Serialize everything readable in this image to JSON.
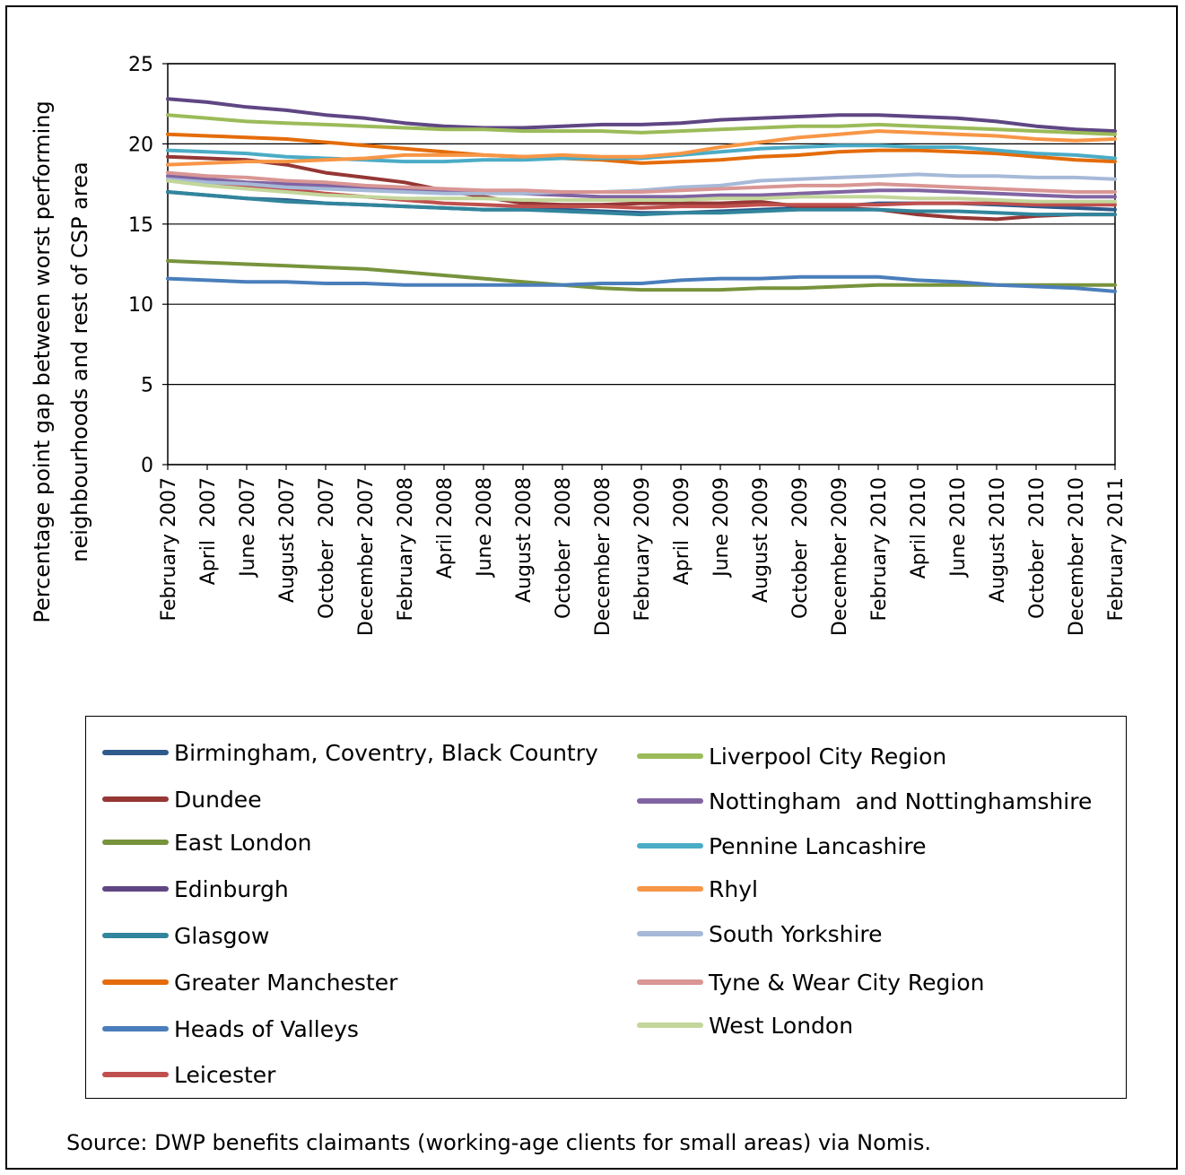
{
  "chart_data": {
    "type": "line",
    "title": "",
    "ylabel": "Percentage point gap between worst performing neighbourhoods and rest of CSP area",
    "xlabel": "",
    "ylim": [
      0,
      25
    ],
    "yticks": [
      0,
      5,
      10,
      15,
      20,
      25
    ],
    "grid": "horizontal",
    "legend_position": "bottom",
    "categories": [
      "February 2007",
      "April  2007",
      "June 2007",
      "August 2007",
      "October  2007",
      "December 2007",
      "February 2008",
      "April 2008",
      "June 2008",
      "August 2008",
      "October  2008",
      "December 2008",
      "February 2009",
      "April  2009",
      "June 2009",
      "August 2009",
      "October  2009",
      "December 2009",
      "February 2010",
      "April 2010",
      "June 2010",
      "August 2010",
      "October  2010",
      "December 2010",
      "February 2011"
    ],
    "series": [
      {
        "name": "Birmingham, Coventry, Black Country",
        "color": "#2E5A8C",
        "values": [
          17.0,
          16.8,
          16.6,
          16.5,
          16.3,
          16.2,
          16.1,
          16.0,
          15.9,
          15.9,
          15.9,
          15.8,
          15.7,
          15.7,
          15.8,
          15.9,
          16.0,
          16.1,
          16.3,
          16.3,
          16.3,
          16.2,
          16.1,
          16.0,
          15.9
        ]
      },
      {
        "name": "Dundee",
        "color": "#953735",
        "values": [
          19.2,
          19.1,
          19.0,
          18.7,
          18.2,
          17.9,
          17.6,
          17.1,
          16.7,
          16.3,
          16.2,
          16.2,
          16.3,
          16.3,
          16.3,
          16.4,
          16.1,
          16.0,
          15.9,
          15.6,
          15.4,
          15.3,
          15.5,
          15.6,
          15.6
        ]
      },
      {
        "name": "East London",
        "color": "#77933C",
        "values": [
          12.7,
          12.6,
          12.5,
          12.4,
          12.3,
          12.2,
          12.0,
          11.8,
          11.6,
          11.4,
          11.2,
          11.0,
          10.9,
          10.9,
          10.9,
          11.0,
          11.0,
          11.1,
          11.2,
          11.2,
          11.2,
          11.2,
          11.2,
          11.2,
          11.2
        ]
      },
      {
        "name": "Edinburgh",
        "color": "#5F4683",
        "values": [
          22.8,
          22.6,
          22.3,
          22.1,
          21.8,
          21.6,
          21.3,
          21.1,
          21.0,
          21.0,
          21.1,
          21.2,
          21.2,
          21.3,
          21.5,
          21.6,
          21.7,
          21.8,
          21.8,
          21.7,
          21.6,
          21.4,
          21.1,
          20.9,
          20.8
        ]
      },
      {
        "name": "Glasgow",
        "color": "#31859C",
        "values": [
          17.0,
          16.8,
          16.6,
          16.4,
          16.3,
          16.2,
          16.1,
          16.0,
          15.9,
          15.9,
          15.8,
          15.7,
          15.6,
          15.7,
          15.7,
          15.8,
          15.9,
          15.9,
          15.9,
          15.8,
          15.8,
          15.7,
          15.6,
          15.6,
          15.6
        ]
      },
      {
        "name": "Greater Manchester",
        "color": "#E46C0A",
        "values": [
          20.6,
          20.5,
          20.4,
          20.3,
          20.1,
          19.9,
          19.7,
          19.5,
          19.3,
          19.2,
          19.1,
          19.0,
          18.8,
          18.9,
          19.0,
          19.2,
          19.3,
          19.5,
          19.6,
          19.6,
          19.5,
          19.4,
          19.2,
          19.0,
          18.9
        ]
      },
      {
        "name": "Heads of Valleys",
        "color": "#4A7EBB",
        "values": [
          11.6,
          11.5,
          11.4,
          11.4,
          11.3,
          11.3,
          11.2,
          11.2,
          11.2,
          11.2,
          11.2,
          11.3,
          11.3,
          11.5,
          11.6,
          11.6,
          11.7,
          11.7,
          11.7,
          11.5,
          11.4,
          11.2,
          11.1,
          11.0,
          10.8
        ]
      },
      {
        "name": "Leicester",
        "color": "#C0504D",
        "values": [
          17.8,
          17.6,
          17.4,
          17.2,
          16.9,
          16.7,
          16.5,
          16.3,
          16.2,
          16.1,
          16.1,
          16.1,
          16.0,
          16.1,
          16.1,
          16.2,
          16.2,
          16.2,
          16.2,
          16.3,
          16.3,
          16.3,
          16.2,
          16.2,
          16.2
        ]
      },
      {
        "name": "Liverpool City Region",
        "color": "#9BBB59",
        "values": [
          21.8,
          21.6,
          21.4,
          21.3,
          21.2,
          21.1,
          21.0,
          20.9,
          20.9,
          20.8,
          20.8,
          20.8,
          20.7,
          20.8,
          20.9,
          21.0,
          21.1,
          21.1,
          21.2,
          21.1,
          21.0,
          20.9,
          20.8,
          20.7,
          20.6
        ]
      },
      {
        "name": "Nottingham  and Nottinghamshire",
        "color": "#8064A2",
        "values": [
          18.0,
          17.8,
          17.6,
          17.5,
          17.4,
          17.3,
          17.2,
          17.1,
          17.0,
          16.9,
          16.8,
          16.7,
          16.7,
          16.7,
          16.8,
          16.8,
          16.9,
          17.0,
          17.1,
          17.1,
          17.0,
          16.9,
          16.8,
          16.7,
          16.7
        ]
      },
      {
        "name": "Pennine Lancashire",
        "color": "#4BACC6",
        "values": [
          19.6,
          19.5,
          19.4,
          19.2,
          19.1,
          19.0,
          18.9,
          18.9,
          19.0,
          19.0,
          19.1,
          19.1,
          19.1,
          19.3,
          19.5,
          19.7,
          19.8,
          19.9,
          19.9,
          19.8,
          19.8,
          19.6,
          19.4,
          19.3,
          19.1
        ]
      },
      {
        "name": "Rhyl",
        "color": "#F79646",
        "values": [
          18.7,
          18.8,
          18.9,
          18.9,
          19.0,
          19.1,
          19.3,
          19.3,
          19.3,
          19.2,
          19.3,
          19.2,
          19.2,
          19.4,
          19.8,
          20.1,
          20.4,
          20.6,
          20.8,
          20.7,
          20.6,
          20.5,
          20.3,
          20.2,
          20.3
        ]
      },
      {
        "name": "South Yorkshire",
        "color": "#A6B9D8",
        "values": [
          17.8,
          17.6,
          17.5,
          17.3,
          17.2,
          17.1,
          17.0,
          16.9,
          16.9,
          16.9,
          17.0,
          17.0,
          17.1,
          17.3,
          17.4,
          17.7,
          17.8,
          17.9,
          18.0,
          18.1,
          18.0,
          18.0,
          17.9,
          17.9,
          17.8
        ]
      },
      {
        "name": "Tyne & Wear City Region",
        "color": "#D99694",
        "values": [
          18.2,
          18.0,
          17.9,
          17.7,
          17.6,
          17.4,
          17.3,
          17.2,
          17.1,
          17.1,
          17.0,
          17.0,
          17.0,
          17.1,
          17.2,
          17.3,
          17.4,
          17.4,
          17.5,
          17.4,
          17.3,
          17.2,
          17.1,
          17.0,
          17.0
        ]
      },
      {
        "name": "West London",
        "color": "#C3D69B",
        "values": [
          17.7,
          17.4,
          17.2,
          17.0,
          16.8,
          16.7,
          16.6,
          16.6,
          16.6,
          16.5,
          16.5,
          16.5,
          16.5,
          16.5,
          16.6,
          16.6,
          16.7,
          16.7,
          16.7,
          16.6,
          16.6,
          16.5,
          16.4,
          16.4,
          16.4
        ]
      }
    ]
  },
  "legend": {
    "items": [
      {
        "label": "Birmingham, Coventry, Black Country",
        "color": "#2E5A8C"
      },
      {
        "label": "Dundee",
        "color": "#953735"
      },
      {
        "label": "East London",
        "color": "#77933C"
      },
      {
        "label": "Edinburgh",
        "color": "#5F4683"
      },
      {
        "label": "Glasgow",
        "color": "#31859C"
      },
      {
        "label": "Greater Manchester",
        "color": "#E46C0A"
      },
      {
        "label": "Heads of Valleys",
        "color": "#4A7EBB"
      },
      {
        "label": "Leicester",
        "color": "#C0504D"
      },
      {
        "label": "Liverpool City Region",
        "color": "#9BBB59"
      },
      {
        "label": "Nottingham  and Nottinghamshire",
        "color": "#8064A2"
      },
      {
        "label": "Pennine Lancashire",
        "color": "#4BACC6"
      },
      {
        "label": "Rhyl",
        "color": "#F79646"
      },
      {
        "label": "South Yorkshire",
        "color": "#A6B9D8"
      },
      {
        "label": "Tyne & Wear City Region",
        "color": "#D99694"
      },
      {
        "label": "West London",
        "color": "#C3D69B"
      }
    ]
  },
  "source": "Source: DWP benefits claimants (working-age clients for small areas) via Nomis."
}
